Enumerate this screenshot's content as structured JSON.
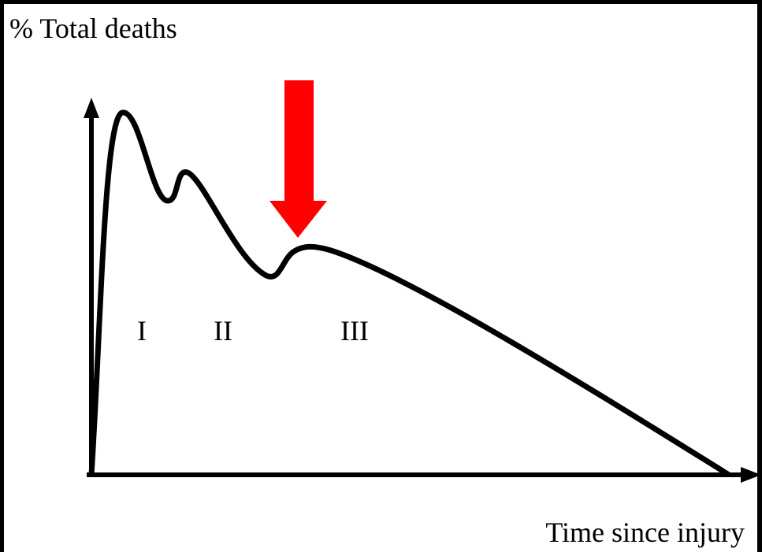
{
  "y_axis_label": "% Total deaths",
  "x_axis_label": "Time since injury",
  "phases": [
    "I",
    "II",
    "III"
  ]
}
